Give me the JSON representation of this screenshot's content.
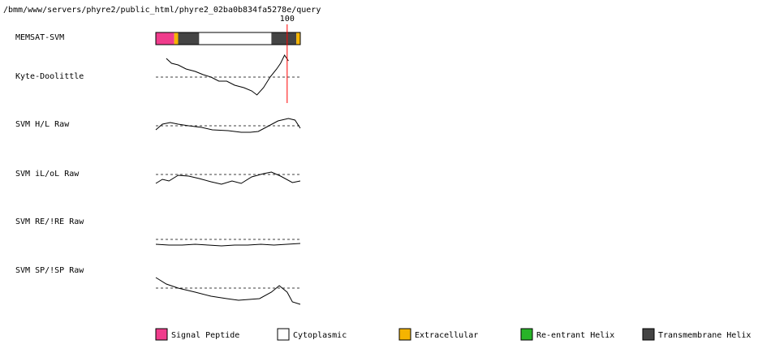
{
  "path": "/bmm/www/servers/phyre2/public_html/phyre2_02ba0b834fa5278e/query",
  "xlim": [
    0,
    110
  ],
  "ylim": [
    -3,
    3
  ],
  "baseline": 0,
  "marker": 100,
  "marker_color": "#ff0000",
  "memsat": {
    "label": "MEMSAT-SVM",
    "segments": [
      {
        "start": 0,
        "end": 14,
        "color": "#f03c8c"
      },
      {
        "start": 14,
        "end": 17,
        "color": "#f5b400"
      },
      {
        "start": 17,
        "end": 33,
        "color": "#444444"
      },
      {
        "start": 33,
        "end": 88,
        "color": "#ffffff"
      },
      {
        "start": 88,
        "end": 107,
        "color": "#444444"
      },
      {
        "start": 107,
        "end": 110,
        "color": "#f5b400"
      }
    ]
  },
  "tracks": [
    {
      "label": "Kyte-Doolittle",
      "x": [
        8,
        12,
        17,
        23,
        30,
        36,
        42,
        48,
        54,
        60,
        67,
        73,
        77,
        82,
        87,
        92,
        95,
        98,
        101
      ],
      "values": [
        2.3,
        1.7,
        1.5,
        1.0,
        0.7,
        0.3,
        0,
        -0.5,
        -0.5,
        -1.0,
        -1.3,
        -1.7,
        -2.2,
        -1.3,
        0,
        1.0,
        1.7,
        2.7,
        2.0
      ]
    },
    {
      "label": "SVM H/L Raw",
      "x": [
        0,
        5,
        11,
        17,
        25,
        35,
        43,
        55,
        65,
        72,
        78,
        85,
        93,
        101,
        106,
        110
      ],
      "values": [
        -0.5,
        0.2,
        0.4,
        0.2,
        0,
        -0.2,
        -0.5,
        -0.6,
        -0.8,
        -0.8,
        -0.7,
        -0.1,
        0.6,
        0.9,
        0.7,
        -0.3
      ]
    },
    {
      "label": "SVM iL/oL Raw",
      "x": [
        0,
        5,
        10,
        17,
        25,
        33,
        42,
        50,
        58,
        65,
        73,
        82,
        88,
        95,
        104,
        110
      ],
      "values": [
        -1.1,
        -0.6,
        -0.8,
        -0.1,
        -0.2,
        -0.5,
        -0.9,
        -1.2,
        -0.8,
        -1.1,
        -0.3,
        0.1,
        0.3,
        -0.2,
        -1.0,
        -0.8
      ]
    },
    {
      "label": "SVM RE/!RE Raw",
      "x": [
        0,
        10,
        20,
        30,
        40,
        50,
        60,
        70,
        80,
        90,
        100,
        110
      ],
      "values": [
        -0.6,
        -0.7,
        -0.7,
        -0.6,
        -0.7,
        -0.8,
        -0.7,
        -0.7,
        -0.6,
        -0.7,
        -0.6,
        -0.5
      ]
    },
    {
      "label": "SVM SP/!SP Raw",
      "x": [
        0,
        8,
        17,
        30,
        42,
        54,
        63,
        79,
        88,
        94,
        100,
        104,
        110
      ],
      "values": [
        1.3,
        0.5,
        0,
        -0.5,
        -1.0,
        -1.3,
        -1.5,
        -1.3,
        -0.5,
        0.3,
        -0.5,
        -1.7,
        -2.0
      ]
    }
  ],
  "legend": [
    {
      "name": "Signal Peptide",
      "color": "#f03c8c"
    },
    {
      "name": "Cytoplasmic",
      "color": "#ffffff"
    },
    {
      "name": "Extracellular",
      "color": "#f5b400"
    },
    {
      "name": "Re-entrant Helix",
      "color": "#28b428"
    },
    {
      "name": "Transmembrane Helix",
      "color": "#444444"
    }
  ]
}
